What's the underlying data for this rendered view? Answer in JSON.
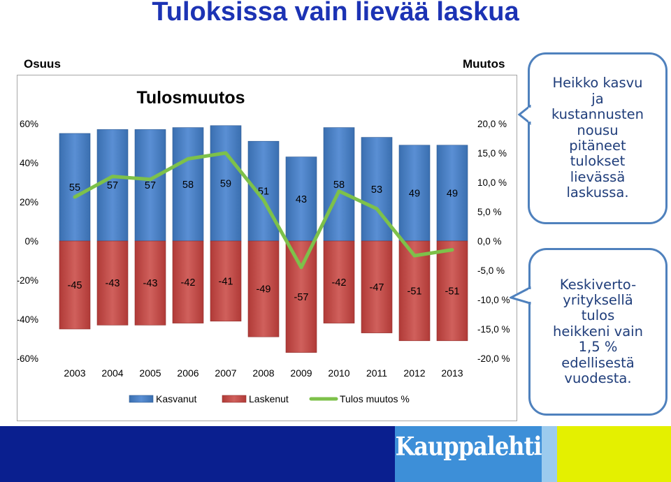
{
  "slide": {
    "title": "Tuloksissa vain lievää laskua",
    "left_label": "Osuus",
    "right_label": "Muutos"
  },
  "chart_data": {
    "type": "bar",
    "title": "Tulosmuutos",
    "categories": [
      "2003",
      "2004",
      "2005",
      "2006",
      "2007",
      "2008",
      "2009",
      "2010",
      "2011",
      "2012",
      "2013"
    ],
    "series": [
      {
        "name": "Kasvanut",
        "type": "bar",
        "axis": "left",
        "color": "#4f81bd",
        "values": [
          55,
          57,
          57,
          58,
          59,
          51,
          43,
          58,
          53,
          49,
          49
        ]
      },
      {
        "name": "Laskenut",
        "type": "bar",
        "axis": "left",
        "color": "#c0504d",
        "values": [
          -45,
          -43,
          -43,
          -42,
          -41,
          -49,
          -57,
          -42,
          -47,
          -51,
          -51
        ]
      },
      {
        "name": "Tulos muutos %",
        "type": "line",
        "axis": "right",
        "color": "#7dc14a",
        "values": [
          7.5,
          11,
          10.5,
          14,
          15,
          7,
          -4.5,
          8.5,
          5.5,
          -2.5,
          -1.5
        ]
      }
    ],
    "left_axis": {
      "min": -60,
      "max": 60,
      "step": 20,
      "ticks": [
        "-60%",
        "-40%",
        "-20%",
        "0%",
        "20%",
        "40%",
        "60%"
      ]
    },
    "right_axis": {
      "min": -20,
      "max": 20,
      "step": 5,
      "ticks": [
        "-20,0 %",
        "-15,0 %",
        "-10,0 %",
        "-5,0 %",
        "0,0 %",
        "5,0 %",
        "10,0 %",
        "15,0 %",
        "20,0 %"
      ]
    },
    "legend": [
      "Kasvanut",
      "Laskenut",
      "Tulos muutos %"
    ],
    "legend_position": "bottom"
  },
  "bubbles": {
    "top": "Heikko kasvu\nja\nkustannusten\nnousu\npitäneet\ntulokset\nlievässä\nlaskussa.",
    "bottom": "Keskiverto-\nyrityksellä\ntulos\nheikkeni vain\n1,5 %\nedellisestä\nvuodesta."
  },
  "footer": {
    "logo": "Kauppalehti",
    "colors": {
      "navy": "#0a1f8f",
      "logo_blue": "#3d8fd8",
      "light_blue": "#9ccbee",
      "yellow_green": "#e4f000"
    }
  }
}
